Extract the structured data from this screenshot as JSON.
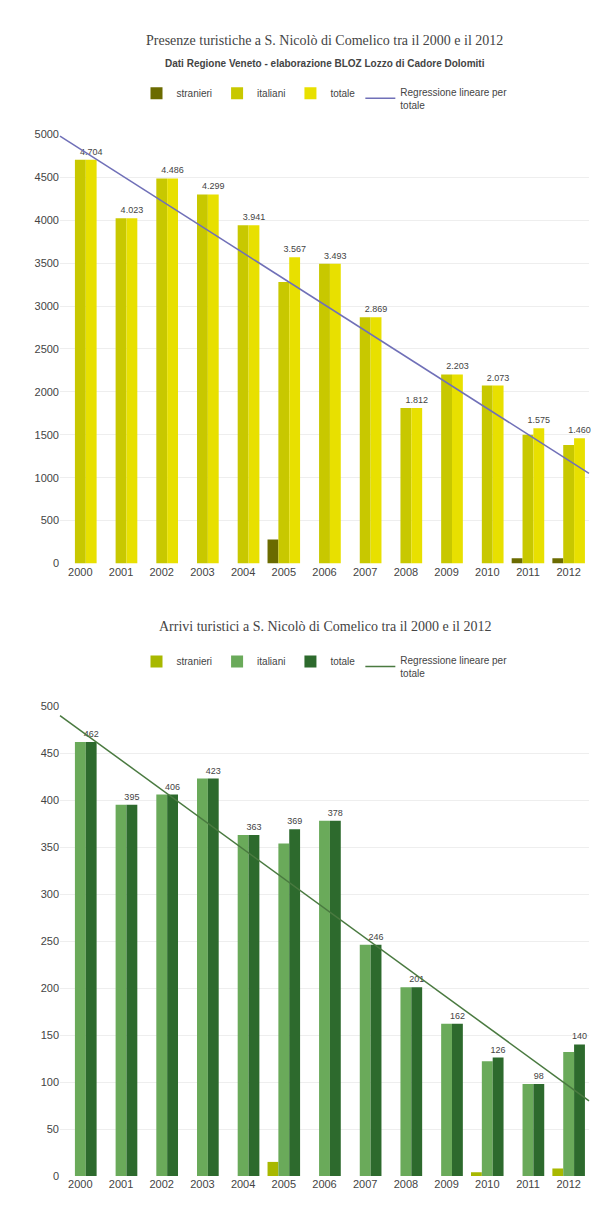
{
  "chart_data": [
    {
      "type": "bar",
      "title": "Presenze turistiche a S. Nicolò di Comelico tra il 2000 e il 2012",
      "subtitle": "Dati Regione Veneto - elaborazione BLOZ Lozzo di Cadore Dolomiti",
      "categories": [
        "2000",
        "2001",
        "2002",
        "2003",
        "2004",
        "2005",
        "2006",
        "2007",
        "2008",
        "2009",
        "2010",
        "2011",
        "2012"
      ],
      "series": [
        {
          "name": "stranieri",
          "color": "#6b6b00",
          "values": [
            0,
            0,
            0,
            0,
            0,
            280,
            0,
            0,
            0,
            0,
            0,
            60,
            60
          ]
        },
        {
          "name": "italiani",
          "color": "#c8c800",
          "values": [
            4704,
            4023,
            4486,
            4299,
            3941,
            3280,
            3493,
            2869,
            1812,
            2203,
            2073,
            1500,
            1380
          ]
        },
        {
          "name": "totale",
          "color": "#e8e000",
          "values": [
            4704,
            4023,
            4486,
            4299,
            3941,
            3567,
            3493,
            2869,
            1812,
            2203,
            2073,
            1575,
            1460
          ],
          "value_labels": [
            "4.704",
            "4.023",
            "4.486",
            "4.299",
            "3.941",
            "3.567",
            "3.493",
            "2.869",
            "1.812",
            "2.203",
            "2.073",
            "1.575",
            "1.460"
          ]
        }
      ],
      "regression": {
        "name": "Regressione lineare per\ntotale",
        "color": "#7070b8",
        "start": 4980,
        "end": 1050
      },
      "ylim": [
        0,
        5000
      ],
      "yticks": [
        0,
        500,
        1000,
        1500,
        2000,
        2500,
        3000,
        3500,
        4000,
        4500,
        5000
      ],
      "grid": true,
      "legend": "top"
    },
    {
      "type": "bar",
      "title": "Arrivi turistici a S. Nicolò di Comelico tra il 2000 e il 2012",
      "categories": [
        "2000",
        "2001",
        "2002",
        "2003",
        "2004",
        "2005",
        "2006",
        "2007",
        "2008",
        "2009",
        "2010",
        "2011",
        "2012"
      ],
      "series": [
        {
          "name": "stranieri",
          "color": "#a8b800",
          "values": [
            0,
            0,
            0,
            0,
            0,
            15,
            0,
            0,
            0,
            0,
            4,
            0,
            8
          ]
        },
        {
          "name": "italiani",
          "color": "#6aaa5a",
          "values": [
            462,
            395,
            406,
            423,
            363,
            354,
            378,
            246,
            201,
            162,
            122,
            98,
            132
          ]
        },
        {
          "name": "totale",
          "color": "#2d6a2d",
          "values": [
            462,
            395,
            406,
            423,
            363,
            369,
            378,
            246,
            201,
            162,
            126,
            98,
            140
          ],
          "value_labels": [
            "462",
            "395",
            "406",
            "423",
            "363",
            "369",
            "378",
            "246",
            "201",
            "162",
            "126",
            "98",
            "140"
          ]
        }
      ],
      "regression": {
        "name": "Regressione lineare per\ntotale",
        "color": "#4a7a40",
        "start": 490,
        "end": 80
      },
      "ylim": [
        0,
        500
      ],
      "yticks": [
        0,
        50,
        100,
        150,
        200,
        250,
        300,
        350,
        400,
        450,
        500
      ],
      "grid": true,
      "legend": "top"
    }
  ]
}
